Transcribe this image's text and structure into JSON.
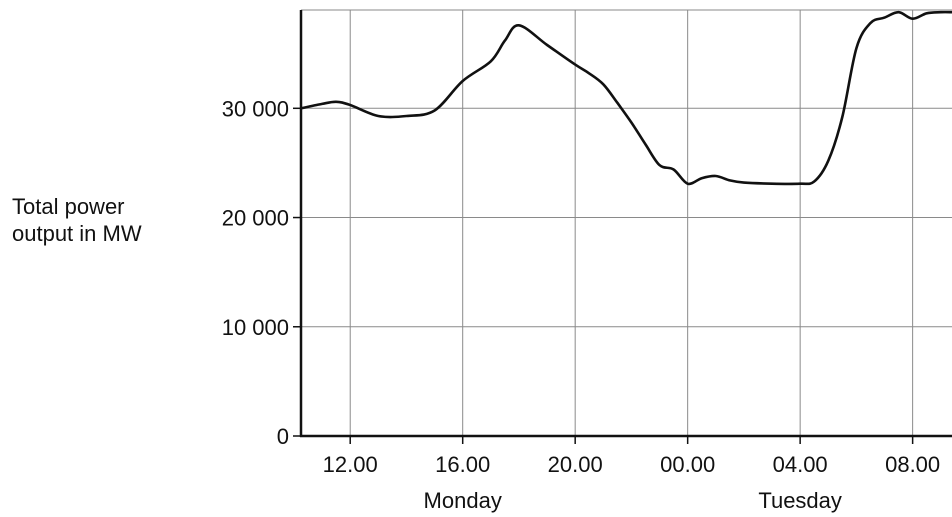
{
  "chart_data": {
    "type": "line",
    "xlabel": "",
    "ylabel_lines": [
      "Total power",
      "output in MW"
    ],
    "ylim": [
      0,
      39000
    ],
    "yticks": [
      0,
      10000,
      20000,
      30000
    ],
    "ytick_labels": [
      "0",
      "10 000",
      "20 000",
      "30 000"
    ],
    "xlim_hours": [
      10.25,
      33.4
    ],
    "xticks_hours": [
      12,
      16,
      20,
      24,
      28,
      32
    ],
    "xtick_labels": [
      "12.00",
      "16.00",
      "20.00",
      "00.00",
      "04.00",
      "08.00"
    ],
    "day_labels": [
      {
        "label": "Monday",
        "at_hour": 16
      },
      {
        "label": "Tuesday",
        "at_hour": 28
      }
    ],
    "grid": true,
    "series": [
      {
        "x": [
          10.25,
          11.0,
          11.5,
          12.0,
          13.0,
          14.0,
          15.0,
          16.0,
          17.0,
          17.5,
          18.0,
          19.0,
          20.0,
          20.5,
          21.0,
          21.5,
          22.0,
          22.5,
          23.0,
          23.5,
          24.0,
          24.5,
          25.0,
          25.5,
          26.0,
          27.0,
          28.0,
          28.5,
          29.0,
          29.5,
          30.0,
          30.5,
          31.0,
          31.5,
          32.0,
          32.5,
          33.0,
          33.4
        ],
        "y": [
          30000,
          30400,
          30600,
          30300,
          29300,
          29300,
          29800,
          32500,
          34300,
          36200,
          37600,
          35800,
          34000,
          33200,
          32200,
          30500,
          28700,
          26700,
          24800,
          24400,
          23100,
          23600,
          23800,
          23400,
          23200,
          23100,
          23100,
          23300,
          25200,
          29200,
          35500,
          37800,
          38300,
          38800,
          38200,
          38700,
          38800,
          38800
        ]
      }
    ]
  }
}
